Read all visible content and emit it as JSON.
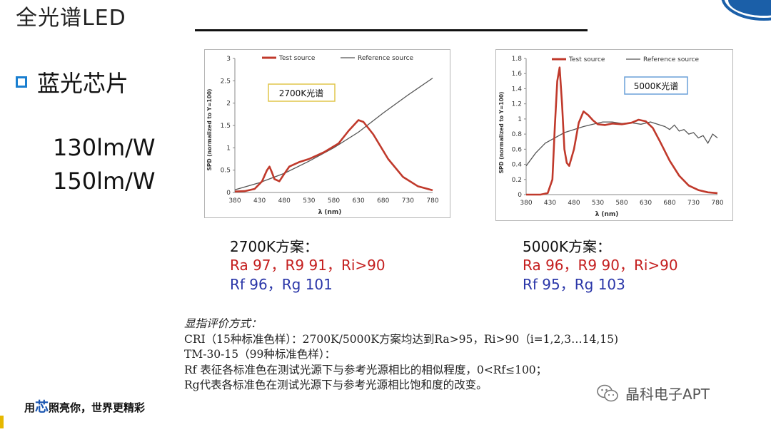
{
  "header": {
    "title": "全光谱LED"
  },
  "left": {
    "bullet": "蓝光芯片",
    "efficacy": [
      "130lm/W",
      "150lm/W"
    ]
  },
  "colors": {
    "test": "#c0392b",
    "reference": "#555555",
    "accent": "#1a7fd0"
  },
  "chart_data": [
    {
      "type": "line",
      "title": "",
      "xlabel": "λ (nm)",
      "ylabel": "SPD (normalized to Y=100)",
      "xlim": [
        380,
        780
      ],
      "ylim": [
        0,
        3
      ],
      "xticks": [
        380,
        430,
        480,
        530,
        580,
        630,
        680,
        730,
        780
      ],
      "yticks": [
        0,
        0.5,
        1,
        1.5,
        2,
        2.5,
        3
      ],
      "ytick_labels": [
        "0",
        "0.5",
        "1",
        "1.5",
        "2",
        "2.5",
        "3"
      ],
      "legend": "top",
      "grid": false,
      "annotation": "2700K光谱",
      "series": [
        {
          "name": "Test source",
          "x": [
            380,
            400,
            420,
            435,
            445,
            450,
            455,
            460,
            470,
            480,
            490,
            510,
            530,
            560,
            590,
            610,
            630,
            640,
            660,
            690,
            720,
            750,
            780
          ],
          "y": [
            0.02,
            0.03,
            0.08,
            0.25,
            0.5,
            0.58,
            0.45,
            0.3,
            0.25,
            0.42,
            0.58,
            0.68,
            0.75,
            0.9,
            1.1,
            1.38,
            1.62,
            1.58,
            1.3,
            0.75,
            0.35,
            0.14,
            0.05
          ]
        },
        {
          "name": "Reference source",
          "x": [
            380,
            430,
            480,
            530,
            580,
            630,
            680,
            730,
            780
          ],
          "y": [
            0.06,
            0.22,
            0.43,
            0.7,
            1.0,
            1.35,
            1.78,
            2.18,
            2.56
          ]
        }
      ]
    },
    {
      "type": "line",
      "title": "",
      "xlabel": "λ (nm)",
      "ylabel": "SPD (normalized to Y=100)",
      "xlim": [
        380,
        780
      ],
      "ylim": [
        0,
        1.8
      ],
      "xticks": [
        380,
        430,
        480,
        530,
        580,
        630,
        680,
        730,
        780
      ],
      "yticks": [
        0,
        0.2,
        0.4,
        0.6,
        0.8,
        1,
        1.2,
        1.4,
        1.6,
        1.8
      ],
      "ytick_labels": [
        "0",
        "0.2",
        "0.4",
        "0.6",
        "0.8",
        "1",
        "1.2",
        "1.4",
        "1.6",
        "1.8"
      ],
      "legend": "top",
      "grid": false,
      "annotation": "5000K光谱",
      "series": [
        {
          "name": "Test source",
          "x": [
            380,
            410,
            425,
            435,
            440,
            445,
            450,
            455,
            460,
            465,
            470,
            480,
            490,
            500,
            510,
            520,
            530,
            545,
            560,
            580,
            600,
            615,
            630,
            645,
            660,
            680,
            700,
            720,
            740,
            760,
            780
          ],
          "y": [
            0.0,
            0.0,
            0.02,
            0.2,
            0.9,
            1.5,
            1.68,
            1.2,
            0.6,
            0.42,
            0.38,
            0.6,
            0.95,
            1.1,
            1.05,
            0.98,
            0.93,
            0.92,
            0.94,
            0.93,
            0.95,
            0.99,
            0.97,
            0.88,
            0.7,
            0.45,
            0.25,
            0.12,
            0.06,
            0.03,
            0.02
          ]
        },
        {
          "name": "Reference source",
          "x": [
            380,
            400,
            420,
            440,
            460,
            480,
            500,
            520,
            540,
            560,
            580,
            600,
            620,
            640,
            660,
            670,
            680,
            690,
            700,
            710,
            720,
            730,
            740,
            750,
            760,
            770,
            780
          ],
          "y": [
            0.38,
            0.55,
            0.68,
            0.75,
            0.82,
            0.86,
            0.9,
            0.93,
            0.96,
            0.96,
            0.94,
            0.95,
            0.93,
            0.96,
            0.92,
            0.9,
            0.86,
            0.92,
            0.84,
            0.86,
            0.8,
            0.82,
            0.75,
            0.78,
            0.68,
            0.8,
            0.75
          ]
        }
      ]
    }
  ],
  "schemes": [
    {
      "heading": "2700K方案：",
      "ra_line": "Ra 97，R9 91，Ri>90",
      "rf_line": "Rf 96，Rg 101"
    },
    {
      "heading": "5000K方案：",
      "ra_line": "Ra 96，R9 90，Ri>90",
      "rf_line": "Rf 95，Rg 103"
    }
  ],
  "notes": {
    "heading": "显指评价方式：",
    "lines": [
      "CRI（15种标准色样）：2700K/5000K方案均达到Ra>95，Ri>90（i=1,2,3…14,15)",
      "TM-30-15（99种标准色样）：",
      "Rf 表征各标准色在测试光源下与参考光源相比的相似程度，0<Rf≤100；",
      "Rg代表各标准色在测试光源下与参考光源相比饱和度的改变。"
    ]
  },
  "footer": {
    "slogan_pre": "用",
    "slogan_hl": "芯",
    "slogan_post": "照亮你，世界更精彩",
    "wechat": "晶科电子APT"
  }
}
